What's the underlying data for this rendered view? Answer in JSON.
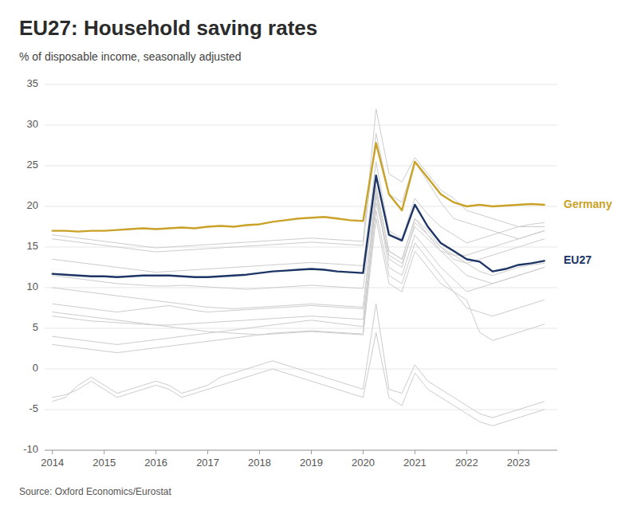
{
  "chart_data": {
    "type": "line",
    "title": "EU27: Household saving rates",
    "subtitle": "% of disposable income, seasonally adjusted",
    "source": "Source: Oxford Economics/Eurostat",
    "x": [
      2014.0,
      2014.25,
      2014.5,
      2014.75,
      2015.0,
      2015.25,
      2015.5,
      2015.75,
      2016.0,
      2016.25,
      2016.5,
      2016.75,
      2017.0,
      2017.25,
      2017.5,
      2017.75,
      2018.0,
      2018.25,
      2018.5,
      2018.75,
      2019.0,
      2019.25,
      2019.5,
      2019.75,
      2020.0,
      2020.25,
      2020.5,
      2020.75,
      2021.0,
      2021.25,
      2021.5,
      2021.75,
      2022.0,
      2022.25,
      2022.5,
      2022.75,
      2023.0,
      2023.25,
      2023.5
    ],
    "xlim": [
      2013.85,
      2023.75
    ],
    "xticks": [
      2014,
      2015,
      2016,
      2017,
      2018,
      2019,
      2020,
      2021,
      2022,
      2023
    ],
    "ylim": [
      -10,
      35
    ],
    "yticks": [
      -10,
      -5,
      0,
      5,
      10,
      15,
      20,
      25,
      30,
      35
    ],
    "grid": true,
    "series": [
      {
        "color": "#cccccc",
        "values": [
          6.5,
          6.3,
          6.1,
          5.9,
          5.8,
          5.7,
          5.6,
          5.5,
          5.4,
          5.4,
          5.5,
          5.6,
          5.7,
          5.8,
          5.9,
          6.0,
          6.1,
          6.2,
          6.3,
          6.4,
          6.5,
          6.4,
          6.3,
          6.2,
          6.1,
          20.5,
          14.0,
          13.0,
          17.5,
          16.0,
          14.5,
          14.0,
          14.0,
          14.5,
          15.0,
          15.5,
          16.0,
          16.5,
          17.0
        ]
      },
      {
        "color": "#cccccc",
        "values": [
          11.5,
          11.3,
          11.1,
          10.9,
          10.7,
          10.5,
          10.4,
          10.3,
          10.2,
          10.2,
          10.3,
          10.2,
          10.1,
          10.0,
          9.9,
          9.8,
          9.9,
          10.0,
          10.1,
          10.2,
          10.3,
          10.2,
          10.1,
          10.0,
          9.9,
          22.5,
          14.5,
          13.5,
          18.5,
          17.0,
          15.0,
          13.5,
          13.0,
          12.0,
          11.5,
          12.0,
          12.5,
          12.8,
          13.0
        ]
      },
      {
        "color": "#cccccc",
        "values": [
          8.0,
          7.8,
          7.6,
          7.4,
          7.2,
          7.0,
          7.2,
          7.4,
          7.6,
          7.8,
          7.5,
          7.2,
          7.0,
          7.1,
          7.2,
          7.3,
          7.4,
          7.5,
          7.6,
          7.7,
          7.8,
          7.7,
          7.6,
          7.5,
          7.4,
          22.0,
          14.5,
          13.5,
          18.5,
          16.5,
          15.0,
          14.0,
          13.0,
          13.5,
          14.0,
          14.5,
          15.0,
          15.5,
          16.0
        ]
      },
      {
        "color": "#cccccc",
        "values": [
          -4.0,
          -3.5,
          -2.0,
          -1.0,
          -2.0,
          -3.0,
          -2.5,
          -2.0,
          -1.5,
          -2.0,
          -3.0,
          -2.5,
          -2.0,
          -1.0,
          -0.5,
          0.0,
          0.5,
          1.0,
          0.5,
          0.0,
          -0.5,
          -1.0,
          -1.5,
          -2.0,
          -2.5,
          8.0,
          -2.5,
          -3.0,
          0.5,
          -1.5,
          -2.5,
          -3.5,
          -4.5,
          -5.5,
          -6.0,
          -5.5,
          -5.0,
          -4.5,
          -4.0
        ]
      },
      {
        "color": "#cccccc",
        "values": [
          16.0,
          15.8,
          15.6,
          15.4,
          15.2,
          15.0,
          14.8,
          14.6,
          14.4,
          14.5,
          14.6,
          14.7,
          14.8,
          14.9,
          15.0,
          15.1,
          15.2,
          15.3,
          15.4,
          15.5,
          15.6,
          15.5,
          15.4,
          15.3,
          15.2,
          29.0,
          21.5,
          20.5,
          25.5,
          23.0,
          20.5,
          18.5,
          18.0,
          17.5,
          17.0,
          16.5,
          16.0,
          16.5,
          17.0
        ]
      },
      {
        "color": "#cccccc",
        "values": [
          10.0,
          9.8,
          9.6,
          9.4,
          9.2,
          9.0,
          8.8,
          8.6,
          8.4,
          8.2,
          8.0,
          7.8,
          7.6,
          7.5,
          7.4,
          7.5,
          7.6,
          7.7,
          7.8,
          7.9,
          8.0,
          7.9,
          7.8,
          7.7,
          7.6,
          21.5,
          13.5,
          12.5,
          18.0,
          16.5,
          14.5,
          13.0,
          11.5,
          11.0,
          10.5,
          11.0,
          11.5,
          12.0,
          12.5
        ]
      },
      {
        "color": "#cccccc",
        "values": [
          13.5,
          13.3,
          13.1,
          12.9,
          12.7,
          12.5,
          12.3,
          12.1,
          11.9,
          12.0,
          12.1,
          12.2,
          12.3,
          12.4,
          12.5,
          12.6,
          12.7,
          12.8,
          12.9,
          13.0,
          13.1,
          13.0,
          12.9,
          12.8,
          12.7,
          25.5,
          17.0,
          16.0,
          21.0,
          19.0,
          17.5,
          16.5,
          15.5,
          16.0,
          16.5,
          17.0,
          17.5,
          17.8,
          18.0
        ]
      },
      {
        "color": "#cccccc",
        "values": [
          4.0,
          3.8,
          3.6,
          3.4,
          3.2,
          3.0,
          3.2,
          3.4,
          3.6,
          3.8,
          4.0,
          4.2,
          4.4,
          4.6,
          4.8,
          5.0,
          5.2,
          5.4,
          5.6,
          5.8,
          6.0,
          5.8,
          5.6,
          5.4,
          5.2,
          19.5,
          11.5,
          10.5,
          15.5,
          13.5,
          11.5,
          9.5,
          7.5,
          7.0,
          6.5,
          7.0,
          7.5,
          8.0,
          8.5
        ]
      },
      {
        "color": "#cccccc",
        "values": [
          7.0,
          6.8,
          6.6,
          6.4,
          6.2,
          6.0,
          5.8,
          5.6,
          5.4,
          5.2,
          5.0,
          4.8,
          4.6,
          4.5,
          4.4,
          4.3,
          4.2,
          4.3,
          4.4,
          4.5,
          4.6,
          4.5,
          4.4,
          4.3,
          4.2,
          18.5,
          10.5,
          9.5,
          14.5,
          12.5,
          10.5,
          9.5,
          8.5,
          4.5,
          3.5,
          4.0,
          4.5,
          5.0,
          5.5
        ]
      },
      {
        "color": "#cccccc",
        "values": [
          16.5,
          16.3,
          16.1,
          15.9,
          15.7,
          15.5,
          15.3,
          15.1,
          14.9,
          15.0,
          15.1,
          15.2,
          15.3,
          15.4,
          15.5,
          15.6,
          15.7,
          15.8,
          15.9,
          16.0,
          16.1,
          16.0,
          15.9,
          15.8,
          15.7,
          32.0,
          24.0,
          23.0,
          26.0,
          24.0,
          22.0,
          21.0,
          19.5,
          19.0,
          18.5,
          18.0,
          17.5,
          17.5,
          17.5
        ]
      },
      {
        "color": "#cccccc",
        "values": [
          3.0,
          2.8,
          2.6,
          2.4,
          2.2,
          2.0,
          2.2,
          2.4,
          2.6,
          2.8,
          3.0,
          3.2,
          3.4,
          3.6,
          3.8,
          4.0,
          4.2,
          4.4,
          4.5,
          4.6,
          4.7,
          4.6,
          4.5,
          4.4,
          4.3,
          21.5,
          12.5,
          11.5,
          16.5,
          14.5,
          12.5,
          11.0,
          9.5,
          10.0,
          10.5,
          11.0,
          11.5,
          12.0,
          12.5
        ]
      },
      {
        "color": "#cccccc",
        "values": [
          -3.5,
          -3.2,
          -2.5,
          -1.5,
          -2.5,
          -3.5,
          -3.0,
          -2.5,
          -2.0,
          -2.5,
          -3.5,
          -3.0,
          -2.5,
          -2.0,
          -1.5,
          -1.0,
          -0.5,
          0.0,
          -0.5,
          -1.0,
          -1.5,
          -2.0,
          -2.5,
          -3.0,
          -3.5,
          4.5,
          -3.5,
          -4.5,
          -0.5,
          -2.5,
          -3.5,
          -4.5,
          -5.5,
          -6.5,
          -7.0,
          -6.5,
          -6.0,
          -5.5,
          -5.0
        ]
      },
      {
        "name": "Germany",
        "color": "#c9a227",
        "values": [
          17.0,
          17.0,
          16.9,
          17.0,
          17.0,
          17.1,
          17.2,
          17.3,
          17.2,
          17.3,
          17.4,
          17.3,
          17.5,
          17.6,
          17.5,
          17.7,
          17.8,
          18.1,
          18.3,
          18.5,
          18.6,
          18.7,
          18.5,
          18.3,
          18.2,
          27.8,
          21.5,
          19.5,
          25.5,
          23.5,
          21.5,
          20.5,
          20.0,
          20.2,
          20.0,
          20.1,
          20.2,
          20.3,
          20.2
        ]
      },
      {
        "name": "EU27",
        "color": "#1c3564",
        "values": [
          11.7,
          11.6,
          11.5,
          11.4,
          11.4,
          11.3,
          11.4,
          11.5,
          11.5,
          11.5,
          11.4,
          11.3,
          11.3,
          11.4,
          11.5,
          11.6,
          11.8,
          12.0,
          12.1,
          12.2,
          12.3,
          12.2,
          12.0,
          11.9,
          11.8,
          23.8,
          16.5,
          15.8,
          20.2,
          17.5,
          15.5,
          14.5,
          13.5,
          13.2,
          12.0,
          12.3,
          12.8,
          13.0,
          13.3
        ]
      }
    ]
  }
}
